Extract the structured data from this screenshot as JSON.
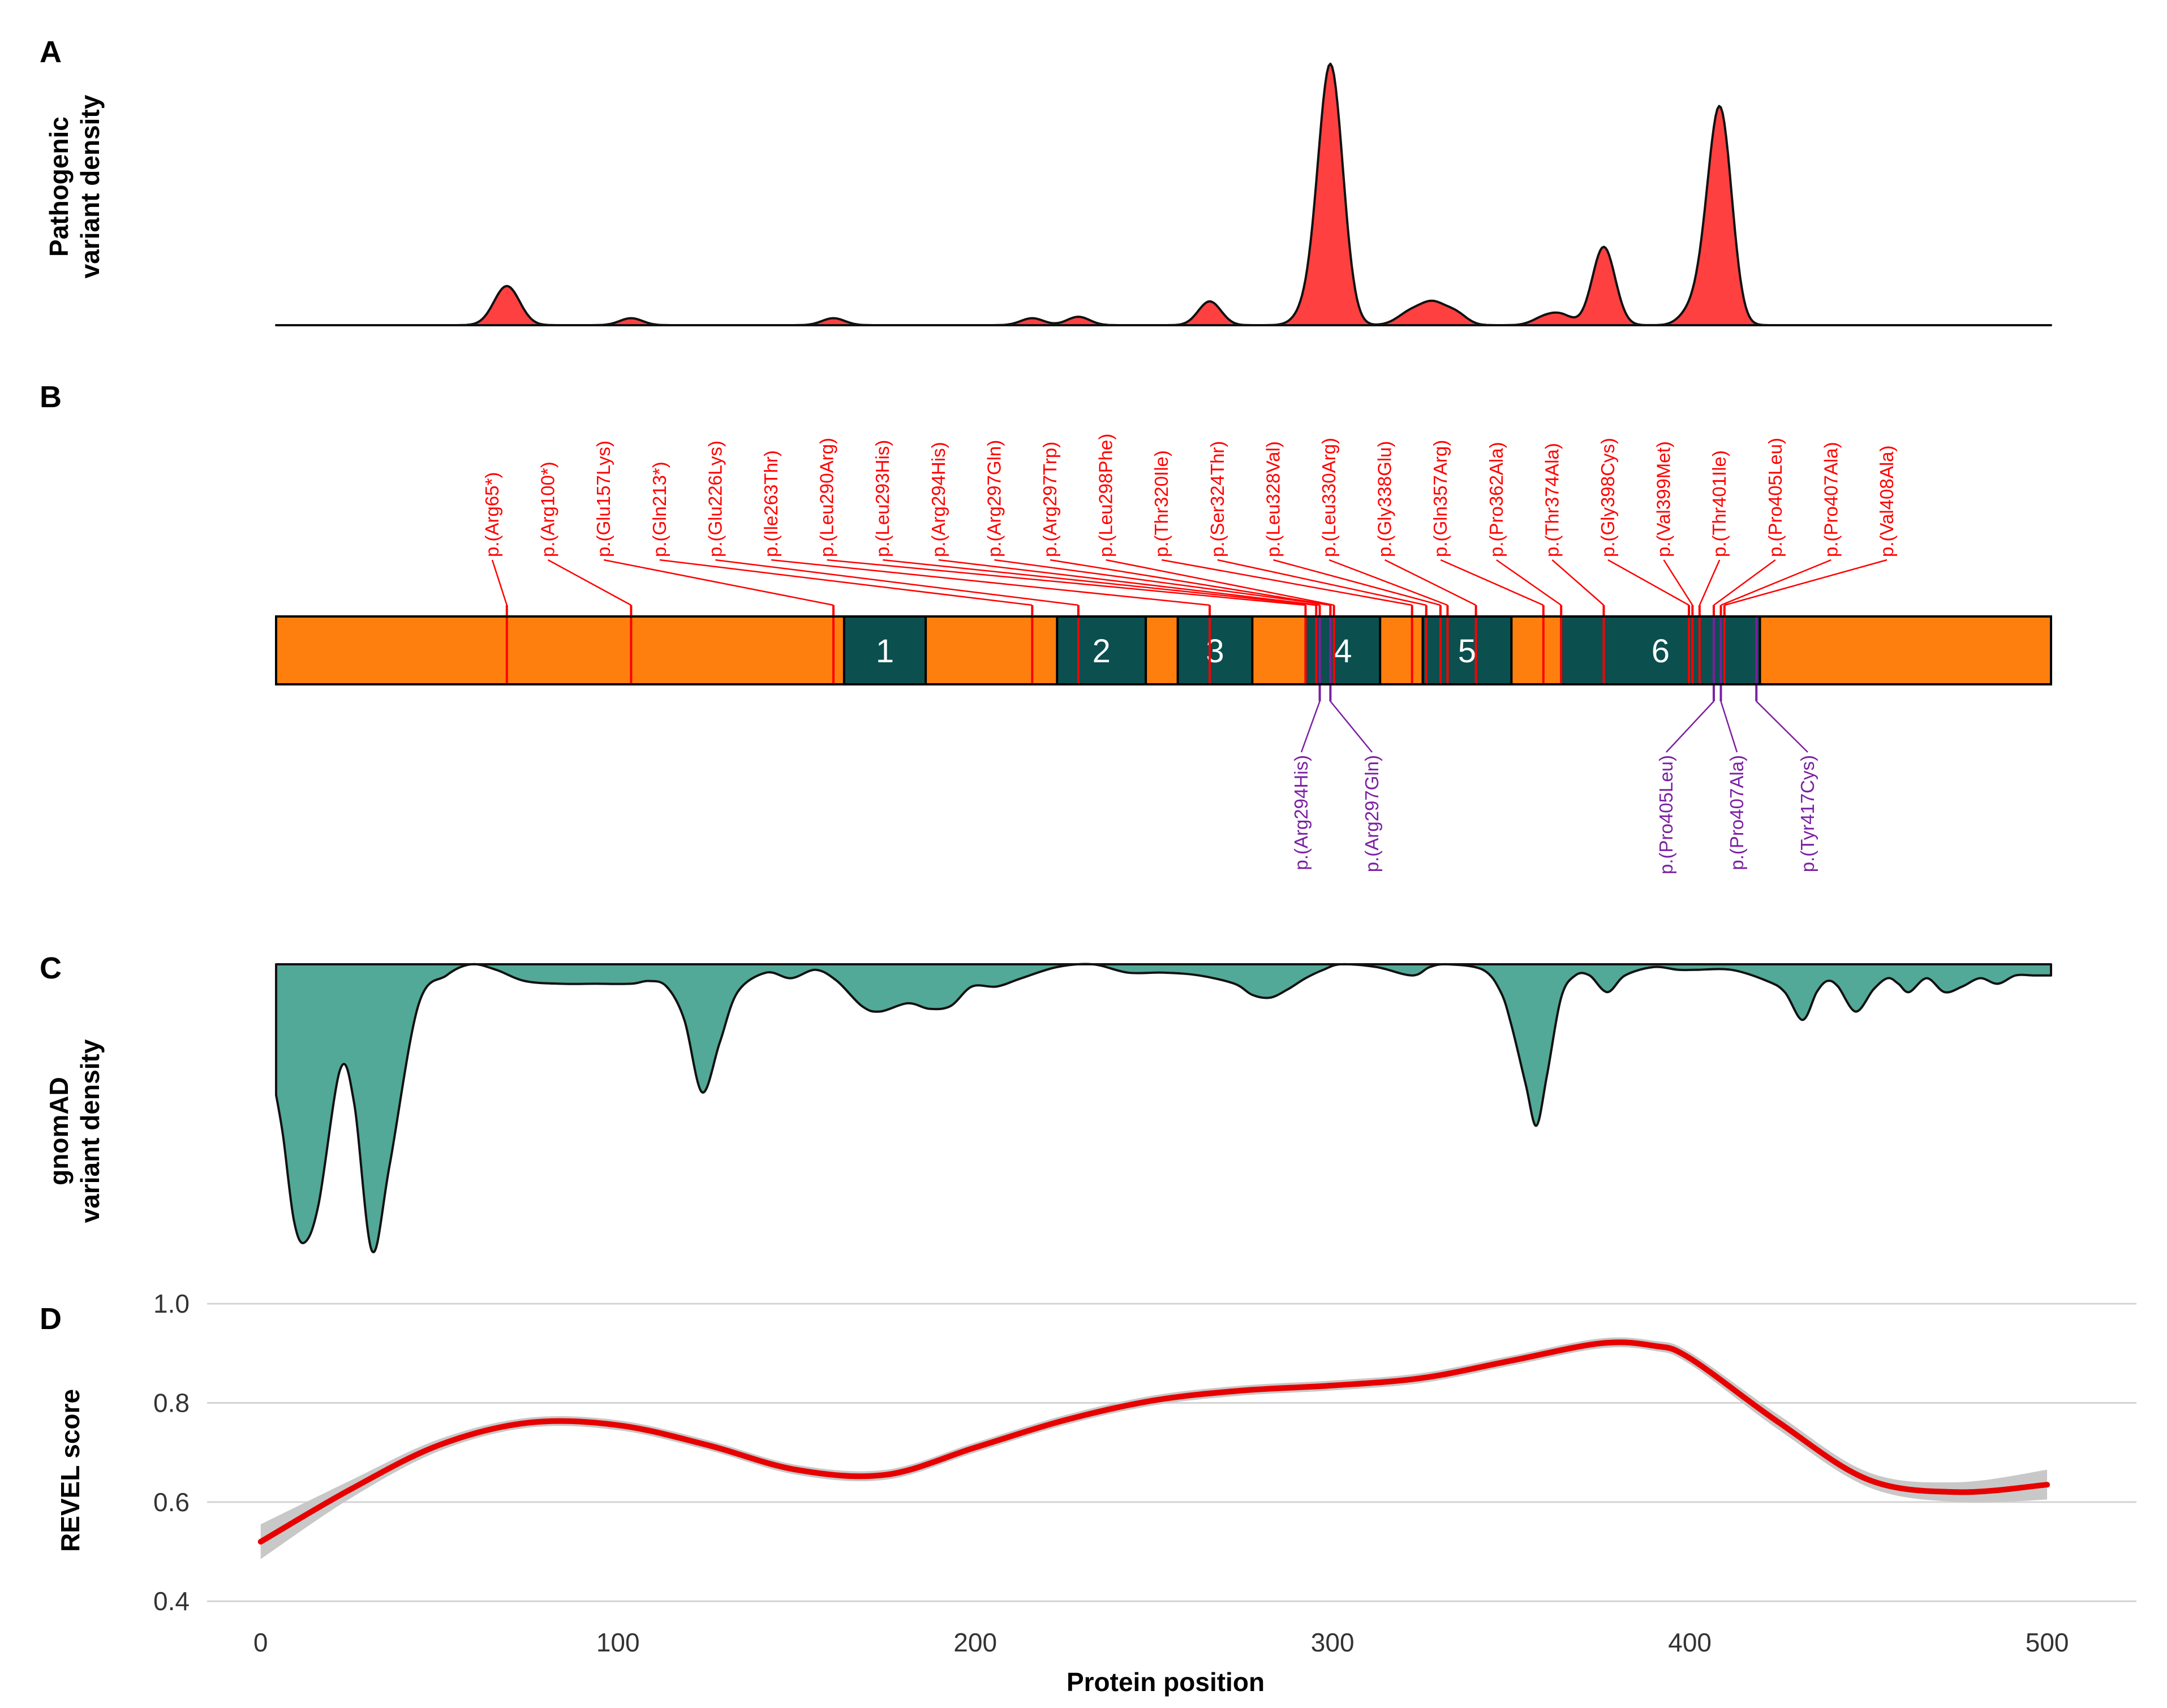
{
  "chart_data": [
    {
      "panel": "A",
      "type": "area",
      "ylabel": [
        "Pathogenic",
        "variant density"
      ],
      "fill_color": "#ff4040",
      "x_domain": [
        0,
        500
      ],
      "peaks": [
        {
          "x": 65,
          "h": 0.14,
          "w": 3.6
        },
        {
          "x": 100,
          "h": 0.025,
          "w": 3.2
        },
        {
          "x": 157,
          "h": 0.025,
          "w": 3.2
        },
        {
          "x": 213,
          "h": 0.025,
          "w": 3.2
        },
        {
          "x": 226,
          "h": 0.03,
          "w": 3.2
        },
        {
          "x": 263,
          "h": 0.085,
          "w": 3.2
        },
        {
          "x": 290,
          "h": 0.04,
          "w": 3.2
        },
        {
          "x": 297,
          "h": 0.93,
          "w": 3.5
        },
        {
          "x": 320,
          "h": 0.05,
          "w": 3.8
        },
        {
          "x": 326,
          "h": 0.065,
          "w": 3.2
        },
        {
          "x": 332,
          "h": 0.045,
          "w": 3.2
        },
        {
          "x": 357,
          "h": 0.025,
          "w": 3.2
        },
        {
          "x": 362,
          "h": 0.035,
          "w": 3.2
        },
        {
          "x": 374,
          "h": 0.28,
          "w": 3.2
        },
        {
          "x": 398,
          "h": 0.04,
          "w": 3.0
        },
        {
          "x": 403,
          "h": 0.14,
          "w": 3.0
        },
        {
          "x": 407,
          "h": 0.72,
          "w": 3.2
        }
      ]
    },
    {
      "panel": "B",
      "type": "protein-map",
      "x_domain": [
        0,
        500
      ],
      "domains": [
        {
          "label": "1",
          "start": 160,
          "end": 183
        },
        {
          "label": "2",
          "start": 220,
          "end": 245
        },
        {
          "label": "3",
          "start": 254,
          "end": 275
        },
        {
          "label": "4",
          "start": 290,
          "end": 311
        },
        {
          "label": "5",
          "start": 323,
          "end": 348
        },
        {
          "label": "6",
          "start": 362,
          "end": 418
        }
      ],
      "domain_labels": [
        "1",
        "2",
        "3",
        "4",
        "5",
        "6"
      ],
      "pathogenic_variants": [
        {
          "label": "p.(Arg65*)",
          "pos": 65
        },
        {
          "label": "p.(Arg100*)",
          "pos": 100
        },
        {
          "label": "p.(Glu157Lys)",
          "pos": 157
        },
        {
          "label": "p.(Gln213*)",
          "pos": 213
        },
        {
          "label": "p.(Glu226Lys)",
          "pos": 226
        },
        {
          "label": "p.(Ile263Thr)",
          "pos": 263
        },
        {
          "label": "p.(Leu290Arg)",
          "pos": 290
        },
        {
          "label": "p.(Leu293His)",
          "pos": 293
        },
        {
          "label": "p.(Arg294His)",
          "pos": 294
        },
        {
          "label": "p.(Arg297Gln)",
          "pos": 297
        },
        {
          "label": "p.(Arg297Trp)",
          "pos": 297
        },
        {
          "label": "p.(Leu298Phe)",
          "pos": 298
        },
        {
          "label": "p.(Thr320Ile)",
          "pos": 320
        },
        {
          "label": "p.(Ser324Thr)",
          "pos": 324
        },
        {
          "label": "p.(Leu328Val)",
          "pos": 328
        },
        {
          "label": "p.(Leu330Arg)",
          "pos": 330
        },
        {
          "label": "p.(Gly338Glu)",
          "pos": 338
        },
        {
          "label": "p.(Gln357Arg)",
          "pos": 357
        },
        {
          "label": "p.(Pro362Ala)",
          "pos": 362
        },
        {
          "label": "p.(Thr374Ala)",
          "pos": 374
        },
        {
          "label": "p.(Gly398Cys)",
          "pos": 398
        },
        {
          "label": "p.(Val399Met)",
          "pos": 399
        },
        {
          "label": "p.(Thr401Ile)",
          "pos": 401
        },
        {
          "label": "p.(Pro405Leu)",
          "pos": 405
        },
        {
          "label": "p.(Pro407Ala)",
          "pos": 407
        },
        {
          "label": "p.(Val408Ala)",
          "pos": 408
        }
      ],
      "gnomad_variants": [
        {
          "label": "p.(Arg294His)",
          "pos": 294
        },
        {
          "label": "p.(Arg297Gln)",
          "pos": 297
        },
        {
          "label": "p.(Pro405Leu)",
          "pos": 405
        },
        {
          "label": "p.(Pro407Ala)",
          "pos": 407
        },
        {
          "label": "p.(Tyr417Cys)",
          "pos": 417
        }
      ],
      "colors": {
        "backbone": "#ff7f0e",
        "domain": "#0b4f4f",
        "pathogenic": "#ff0000",
        "gnomad": "#7a1fa2"
      }
    },
    {
      "panel": "C",
      "type": "area",
      "orientation": "inverted",
      "ylabel": [
        "gnomAD",
        "variant density"
      ],
      "fill_color": "#52a997",
      "x": [
        0,
        2,
        5,
        8,
        12,
        18,
        22,
        27,
        32,
        40,
        48,
        55,
        62,
        70,
        80,
        90,
        100,
        105,
        110,
        115,
        120,
        125,
        130,
        138,
        145,
        152,
        158,
        165,
        170,
        178,
        184,
        190,
        196,
        203,
        210,
        220,
        230,
        240,
        250,
        260,
        270,
        275,
        280,
        285,
        290,
        295,
        300,
        310,
        320,
        325,
        330,
        340,
        345,
        348,
        352,
        355,
        358,
        362,
        366,
        370,
        375,
        380,
        388,
        395,
        400,
        410,
        420,
        425,
        430,
        434,
        437,
        440,
        445,
        450,
        454,
        457,
        460,
        465,
        470,
        475,
        480,
        485,
        490,
        495,
        500
      ],
      "depth": [
        0.47,
        0.62,
        0.92,
        1.0,
        0.86,
        0.38,
        0.5,
        1.03,
        0.72,
        0.15,
        0.04,
        0.0,
        0.02,
        0.06,
        0.07,
        0.07,
        0.07,
        0.06,
        0.08,
        0.2,
        0.46,
        0.28,
        0.1,
        0.03,
        0.05,
        0.02,
        0.06,
        0.15,
        0.17,
        0.14,
        0.16,
        0.15,
        0.08,
        0.08,
        0.05,
        0.01,
        0.0,
        0.03,
        0.03,
        0.04,
        0.07,
        0.11,
        0.12,
        0.09,
        0.05,
        0.02,
        0.0,
        0.01,
        0.04,
        0.01,
        0.0,
        0.02,
        0.1,
        0.22,
        0.43,
        0.58,
        0.4,
        0.12,
        0.04,
        0.04,
        0.1,
        0.04,
        0.01,
        0.02,
        0.02,
        0.02,
        0.06,
        0.1,
        0.2,
        0.1,
        0.06,
        0.08,
        0.17,
        0.09,
        0.05,
        0.07,
        0.1,
        0.05,
        0.1,
        0.08,
        0.05,
        0.07,
        0.04,
        0.04,
        0.04
      ]
    },
    {
      "panel": "D",
      "type": "line",
      "title": "",
      "xlabel": "Protein position",
      "ylabel": "REVEL score",
      "xlim": [
        -15,
        525
      ],
      "ylim": [
        0.39,
        1.04
      ],
      "xticks": [
        0,
        100,
        200,
        300,
        400,
        500
      ],
      "xtick_labels": [
        "0",
        "100",
        "200",
        "300",
        "400",
        "500"
      ],
      "yticks": [
        0.4,
        0.6,
        0.8,
        1.0
      ],
      "ytick_labels": [
        "0.4",
        "0.6",
        "0.8",
        "1.0"
      ],
      "grid": true,
      "line_color": "#e60000",
      "band_color": "#c8c8c8",
      "x": [
        0,
        25,
        50,
        75,
        100,
        125,
        150,
        175,
        200,
        225,
        250,
        275,
        300,
        325,
        350,
        375,
        390,
        400,
        425,
        450,
        475,
        500
      ],
      "y": [
        0.52,
        0.625,
        0.715,
        0.76,
        0.755,
        0.715,
        0.665,
        0.655,
        0.71,
        0.765,
        0.805,
        0.825,
        0.835,
        0.85,
        0.885,
        0.92,
        0.915,
        0.89,
        0.76,
        0.645,
        0.62,
        0.635
      ],
      "ci_halfwidth": [
        0.035,
        0.018,
        0.012,
        0.01,
        0.01,
        0.01,
        0.01,
        0.01,
        0.01,
        0.01,
        0.01,
        0.01,
        0.01,
        0.01,
        0.01,
        0.01,
        0.01,
        0.012,
        0.015,
        0.015,
        0.02,
        0.03
      ]
    }
  ]
}
